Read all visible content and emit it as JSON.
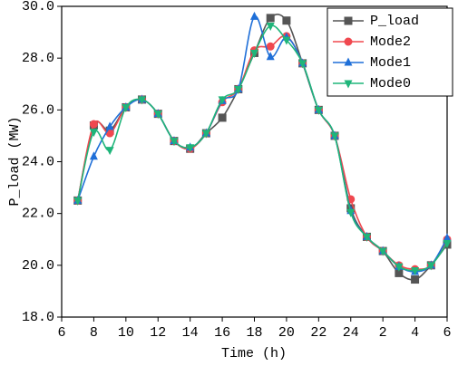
{
  "chart_data": {
    "type": "line",
    "x": [
      7,
      8,
      9,
      10,
      11,
      12,
      13,
      14,
      15,
      16,
      17,
      18,
      19,
      20,
      21,
      22,
      23,
      24,
      25,
      26,
      27,
      28,
      29,
      30
    ],
    "series": [
      {
        "name": "P_load",
        "color": "#555555",
        "marker": "square",
        "values": [
          22.5,
          25.4,
          25.2,
          26.1,
          26.4,
          25.85,
          24.8,
          24.5,
          25.1,
          25.7,
          26.8,
          28.2,
          29.55,
          29.45,
          27.8,
          26.0,
          25.0,
          22.2,
          21.1,
          20.55,
          19.7,
          19.45,
          20.0,
          20.8
        ]
      },
      {
        "name": "Mode2",
        "color": "#f0484f",
        "marker": "circle",
        "values": [
          22.5,
          25.45,
          25.1,
          26.1,
          26.4,
          25.85,
          24.8,
          24.5,
          25.1,
          26.3,
          26.8,
          28.3,
          28.45,
          28.85,
          27.8,
          26.0,
          25.0,
          22.55,
          21.1,
          20.55,
          20.0,
          19.85,
          20.0,
          21.0
        ]
      },
      {
        "name": "Mode1",
        "color": "#1f6fd8",
        "marker": "triangle",
        "values": [
          22.5,
          24.2,
          25.35,
          26.1,
          26.4,
          25.85,
          24.8,
          24.55,
          25.1,
          26.35,
          26.8,
          29.6,
          28.05,
          28.8,
          27.8,
          26.0,
          25.0,
          22.1,
          21.1,
          20.55,
          19.95,
          19.75,
          20.0,
          21.05
        ]
      },
      {
        "name": "Mode0",
        "color": "#1fb57a",
        "marker": "triangle-down",
        "values": [
          22.5,
          25.15,
          24.45,
          26.1,
          26.4,
          25.85,
          24.8,
          24.55,
          25.1,
          26.4,
          26.8,
          28.2,
          29.25,
          28.7,
          27.8,
          26.0,
          25.0,
          22.05,
          21.1,
          20.55,
          19.95,
          19.8,
          20.0,
          20.85
        ]
      }
    ],
    "xlabel": "Time (h)",
    "ylabel": "P_load (MW)",
    "xlim": [
      6,
      30
    ],
    "xticks": [
      6,
      8,
      10,
      12,
      14,
      16,
      18,
      20,
      22,
      24,
      {
        "value": 26,
        "label": "2"
      },
      {
        "value": 28,
        "label": "4"
      },
      {
        "value": 30,
        "label": "6"
      }
    ],
    "ylim": [
      18,
      30
    ],
    "yticks": [
      {
        "value": 18,
        "label": "18.0"
      },
      {
        "value": 20,
        "label": "20.0"
      },
      {
        "value": 22,
        "label": "22.0"
      },
      {
        "value": 24,
        "label": "24.0"
      },
      {
        "value": 26,
        "label": "26.0"
      },
      {
        "value": 28,
        "label": "28.0"
      },
      {
        "value": 30,
        "label": "30.0"
      }
    ],
    "legend": "upper right"
  }
}
